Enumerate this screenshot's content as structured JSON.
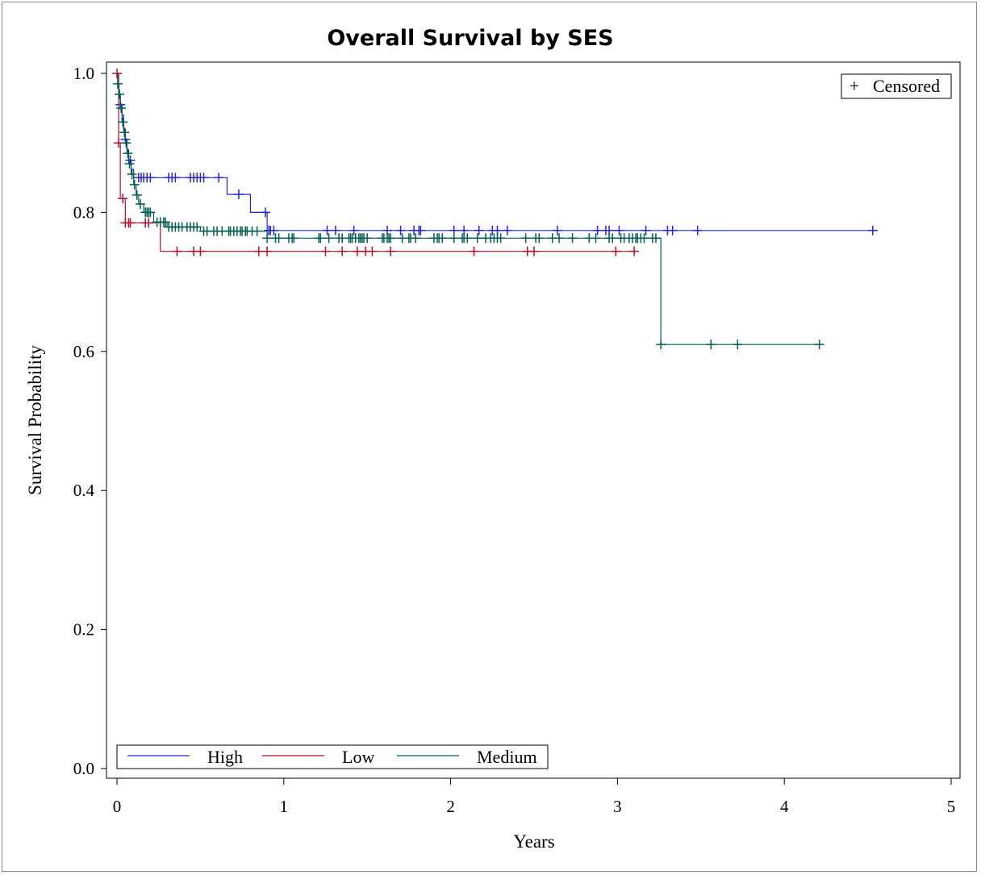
{
  "chart_data": {
    "type": "line",
    "subtype": "kaplan-meier step",
    "title": "Overall Survival by SES",
    "xlabel": "Years",
    "ylabel": "Survival Probability",
    "xlim": [
      0,
      5
    ],
    "ylim": [
      0,
      1
    ],
    "xticks": [
      "0",
      "1",
      "2",
      "3",
      "4",
      "5"
    ],
    "yticks": [
      "0.0",
      "0.2",
      "0.4",
      "0.6",
      "0.8",
      "1.0"
    ],
    "grid": false,
    "censor_legend": {
      "symbol": "+",
      "label": "Censored",
      "placement": "top-right"
    },
    "legend_placement": "bottom-left",
    "series": [
      {
        "name": "High",
        "color": "#2323d8",
        "steps": [
          [
            0,
            1.0
          ],
          [
            0.005,
            0.985
          ],
          [
            0.012,
            0.97
          ],
          [
            0.02,
            0.955
          ],
          [
            0.03,
            0.94
          ],
          [
            0.04,
            0.92
          ],
          [
            0.05,
            0.905
          ],
          [
            0.06,
            0.89
          ],
          [
            0.07,
            0.875
          ],
          [
            0.085,
            0.862
          ],
          [
            0.1,
            0.85
          ],
          [
            0.66,
            0.826
          ],
          [
            0.8,
            0.8
          ],
          [
            0.9,
            0.774
          ]
        ],
        "end": 4.53,
        "censored": [
          0.02,
          0.05,
          0.08,
          0.13,
          0.145,
          0.16,
          0.18,
          0.2,
          0.31,
          0.33,
          0.35,
          0.44,
          0.46,
          0.48,
          0.5,
          0.52,
          0.61,
          0.73,
          0.89,
          0.91,
          0.92,
          0.94,
          1.26,
          1.31,
          1.42,
          1.62,
          1.7,
          1.78,
          1.81,
          1.82,
          2.02,
          2.08,
          2.17,
          2.25,
          2.28,
          2.34,
          2.64,
          2.88,
          2.93,
          2.95,
          3.01,
          3.17,
          3.3,
          3.33,
          3.48,
          4.53
        ]
      },
      {
        "name": "Low",
        "color": "#b0122e",
        "steps": [
          [
            0,
            1.0
          ],
          [
            0.01,
            0.9
          ],
          [
            0.02,
            0.82
          ],
          [
            0.05,
            0.785
          ],
          [
            0.26,
            0.744
          ]
        ],
        "end": 3.1,
        "censored": [
          0.0,
          0.01,
          0.035,
          0.05,
          0.07,
          0.08,
          0.17,
          0.19,
          0.36,
          0.46,
          0.5,
          0.85,
          0.9,
          1.25,
          1.35,
          1.44,
          1.49,
          1.53,
          1.64,
          2.14,
          2.46,
          2.5,
          2.99,
          3.1
        ]
      },
      {
        "name": "Medium",
        "color": "#005f50",
        "steps": [
          [
            0,
            1.0
          ],
          [
            0.004,
            0.985
          ],
          [
            0.01,
            0.97
          ],
          [
            0.02,
            0.95
          ],
          [
            0.03,
            0.93
          ],
          [
            0.04,
            0.915
          ],
          [
            0.05,
            0.9
          ],
          [
            0.06,
            0.885
          ],
          [
            0.07,
            0.87
          ],
          [
            0.085,
            0.855
          ],
          [
            0.1,
            0.84
          ],
          [
            0.115,
            0.825
          ],
          [
            0.13,
            0.812
          ],
          [
            0.16,
            0.8
          ],
          [
            0.22,
            0.786
          ],
          [
            0.3,
            0.779
          ],
          [
            0.5,
            0.773
          ],
          [
            0.9,
            0.763
          ],
          [
            3.26,
            0.61
          ]
        ],
        "end": 4.21,
        "censored": [
          0.005,
          0.015,
          0.025,
          0.035,
          0.045,
          0.055,
          0.065,
          0.075,
          0.09,
          0.105,
          0.12,
          0.14,
          0.17,
          0.18,
          0.19,
          0.2,
          0.24,
          0.26,
          0.28,
          0.29,
          0.31,
          0.33,
          0.35,
          0.37,
          0.39,
          0.42,
          0.44,
          0.46,
          0.48,
          0.52,
          0.54,
          0.58,
          0.6,
          0.63,
          0.67,
          0.68,
          0.7,
          0.72,
          0.74,
          0.75,
          0.77,
          0.78,
          0.81,
          0.84,
          0.9,
          0.95,
          0.97,
          1.03,
          1.05,
          1.06,
          1.21,
          1.22,
          1.27,
          1.33,
          1.35,
          1.39,
          1.4,
          1.41,
          1.43,
          1.45,
          1.46,
          1.47,
          1.48,
          1.5,
          1.59,
          1.6,
          1.62,
          1.63,
          1.64,
          1.71,
          1.75,
          1.76,
          1.79,
          1.9,
          1.92,
          1.93,
          1.95,
          2.02,
          2.07,
          2.08,
          2.1,
          2.16,
          2.21,
          2.24,
          2.26,
          2.28,
          2.3,
          2.45,
          2.51,
          2.53,
          2.61,
          2.65,
          2.73,
          2.83,
          2.87,
          2.95,
          2.97,
          3.02,
          3.04,
          3.07,
          3.09,
          3.11,
          3.12,
          3.14,
          3.16,
          3.21,
          3.23,
          3.26,
          3.56,
          3.72,
          4.21
        ]
      }
    ]
  }
}
